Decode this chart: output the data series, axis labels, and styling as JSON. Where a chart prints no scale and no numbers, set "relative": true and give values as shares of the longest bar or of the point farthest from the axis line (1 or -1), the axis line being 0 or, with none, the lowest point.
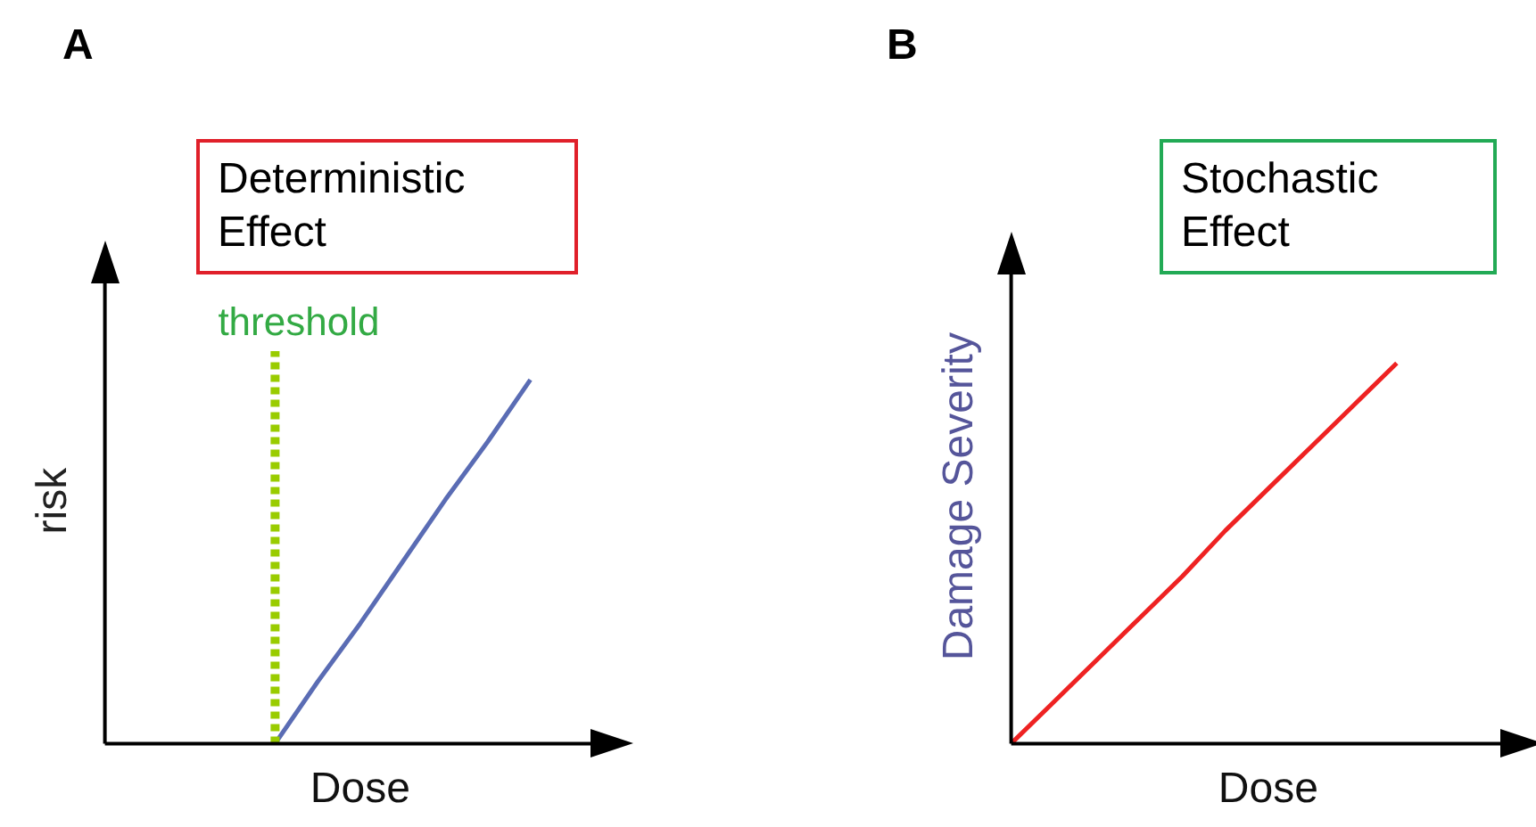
{
  "chart_data": [
    {
      "type": "line",
      "title": "A",
      "subtitle": "Deterministic Effect",
      "xlabel": "Dose",
      "ylabel": "risk",
      "relative": true,
      "tick_labels": false,
      "grid": false,
      "legend": false,
      "marker": "none",
      "categories": [
        null,
        null,
        null,
        null,
        null,
        null,
        null,
        null,
        null,
        null,
        null,
        null,
        null
      ],
      "series": [
        {
          "color": "#5a6cb4",
          "values": [
            null,
            null,
            null,
            null,
            0,
            0.17,
            0.33,
            0.5,
            0.67,
            0.83,
            1,
            null,
            null
          ]
        }
      ],
      "annotations": [
        "threshold"
      ]
    },
    {
      "type": "line",
      "title": "B",
      "subtitle": "Stochastic Effect",
      "xlabel": "Dose",
      "ylabel": "Damage Severity",
      "relative": true,
      "tick_labels": false,
      "grid": false,
      "legend": false,
      "marker": "none",
      "categories": [
        null,
        null,
        null,
        null,
        null,
        null,
        null,
        null,
        null,
        null,
        null,
        null,
        null
      ],
      "series": [
        {
          "color": "#ee2222",
          "values": [
            0,
            0.11,
            0.22,
            0.33,
            0.44,
            0.56,
            0.67,
            0.78,
            0.89,
            1,
            null,
            null,
            null
          ]
        }
      ]
    }
  ]
}
